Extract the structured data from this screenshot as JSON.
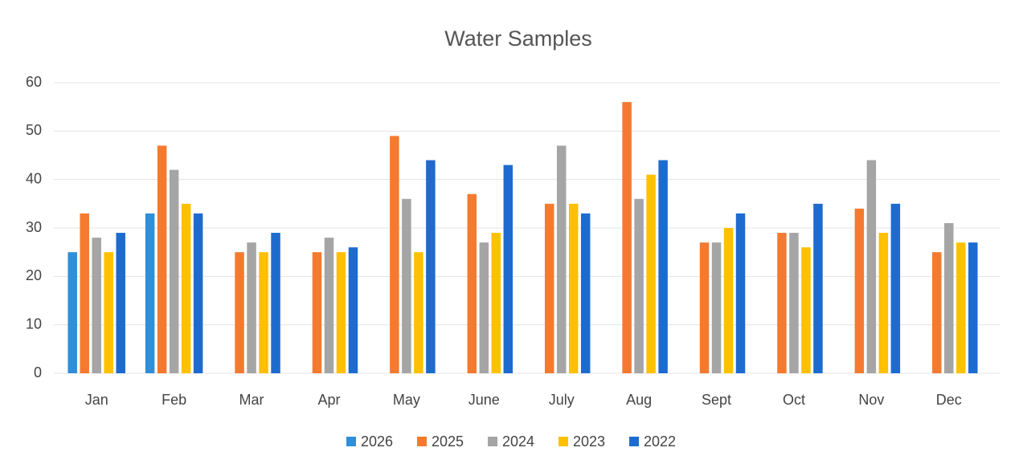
{
  "chart_data": {
    "type": "bar",
    "title": "Water Samples",
    "categories": [
      "Jan",
      "Feb",
      "Mar",
      "Apr",
      "May",
      "June",
      "July",
      "Aug",
      "Sept",
      "Oct",
      "Nov",
      "Dec"
    ],
    "series": [
      {
        "name": "2026",
        "color": "#2f8fd8",
        "values": [
          25,
          33,
          null,
          null,
          null,
          null,
          null,
          null,
          null,
          null,
          null,
          null
        ]
      },
      {
        "name": "2025",
        "color": "#f47a30",
        "values": [
          33,
          47,
          25,
          25,
          49,
          37,
          35,
          56,
          27,
          29,
          34,
          25
        ]
      },
      {
        "name": "2024",
        "color": "#a5a5a5",
        "values": [
          28,
          42,
          27,
          28,
          36,
          27,
          47,
          36,
          27,
          29,
          44,
          31
        ]
      },
      {
        "name": "2023",
        "color": "#ffc000",
        "values": [
          25,
          35,
          25,
          25,
          25,
          29,
          35,
          41,
          30,
          26,
          29,
          27
        ]
      },
      {
        "name": "2022",
        "color": "#1e6bd0",
        "values": [
          29,
          33,
          29,
          26,
          44,
          43,
          33,
          44,
          33,
          35,
          35,
          27
        ]
      }
    ],
    "ylim": [
      0,
      60
    ],
    "yticks": [
      0,
      10,
      20,
      30,
      40,
      50,
      60
    ],
    "grid": true,
    "legend": "bottom"
  }
}
